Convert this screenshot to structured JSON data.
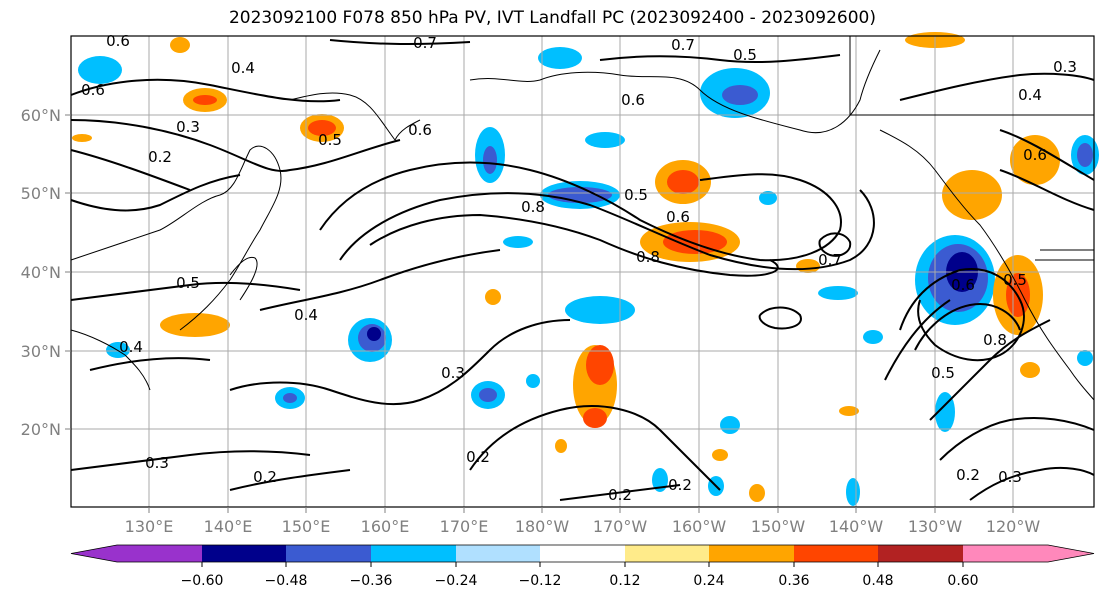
{
  "title": "2023092100 F078 850 hPa PV, IVT Landfall PC (2023092400 - 2023092600)",
  "lon_ticks": [
    "130°E",
    "140°E",
    "150°E",
    "160°E",
    "170°E",
    "180°W",
    "170°W",
    "160°W",
    "150°W",
    "140°W",
    "130°W",
    "120°W"
  ],
  "lat_ticks": [
    "60°N",
    "50°N",
    "40°N",
    "30°N",
    "20°N"
  ],
  "colorbar": {
    "colors": [
      "#9932cc",
      "#00008b",
      "#3b5bd1",
      "#00bfff",
      "#b0e0ff",
      "#ffffff",
      "#ffeb8a",
      "#ffa500",
      "#ff4500",
      "#b22222",
      "#ff88bb"
    ],
    "tick_labels": [
      "−0.60",
      "−0.48",
      "−0.36",
      "−0.24",
      "−0.12",
      "0.12",
      "0.24",
      "0.36",
      "0.48",
      "0.60"
    ]
  },
  "contour_labels": [
    "0.6",
    "0.7",
    "0.4",
    "0.7",
    "0.6",
    "0.5",
    "0.3",
    "0.2",
    "0.5",
    "0.6",
    "0.8",
    "0.5",
    "0.6",
    "0.8",
    "0.7",
    "0.4",
    "0.5",
    "0.4",
    "0.3",
    "0.3",
    "0.2",
    "0.2",
    "0.2",
    "0.2",
    "0.6",
    "0.5",
    "0.8",
    "0.5",
    "0.2",
    "0.3",
    "0.4",
    "0.3",
    "0.6",
    "0.6"
  ]
}
